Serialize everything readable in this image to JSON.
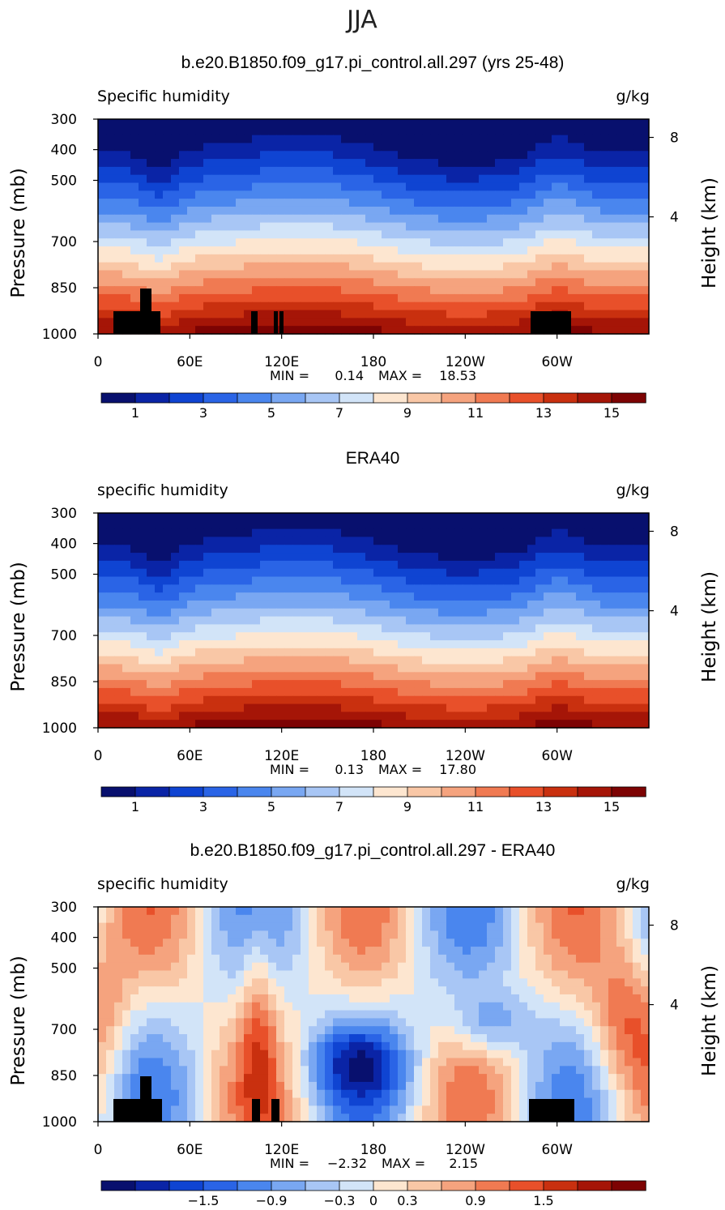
{
  "figure_title": "JJA",
  "palette": {
    "abs": [
      "#08106e",
      "#0a24a6",
      "#0f44d2",
      "#2a64e6",
      "#4a86ee",
      "#79a7f2",
      "#a8c6f5",
      "#d2e4f8",
      "#fde6d0",
      "#f9c7a6",
      "#f5a37e",
      "#f07a52",
      "#e8502a",
      "#c9300f",
      "#a51507",
      "#7d0303"
    ],
    "diff": [
      "#08106e",
      "#0a24a6",
      "#0f44d2",
      "#2a64e6",
      "#4a86ee",
      "#79a7f2",
      "#a8c6f5",
      "#d2e4f8",
      "#fde6d0",
      "#f9c7a6",
      "#f5a37e",
      "#f07a52",
      "#e8502a",
      "#c9300f",
      "#a51507",
      "#7d0303"
    ]
  },
  "axes": {
    "x_ticks": [
      "0",
      "60E",
      "120E",
      "180",
      "120W",
      "60W"
    ],
    "y_left_ticks": [
      "300",
      "400",
      "500",
      "700",
      "850",
      "1000"
    ],
    "y_right_ticks": [
      "8",
      "4"
    ],
    "y_left_label": "Pressure (mb)",
    "y_right_label": "Height (km)",
    "units": "g/kg",
    "min_label": "MIN =",
    "max_label": "MAX ="
  },
  "chart_data": [
    {
      "type": "heatmap",
      "title": "b.e20.B1850.f09_g17.pi_control.all.297 (yrs 25-48)",
      "variable": "Specific humidity",
      "min": "0.14",
      "max": "18.53",
      "colorbar_ticks": [
        "1",
        "3",
        "5",
        "7",
        "9",
        "11",
        "13",
        "15"
      ],
      "colorbar_levels": [
        0,
        1,
        2,
        3,
        4,
        5,
        6,
        7,
        8,
        9,
        10,
        11,
        12,
        13,
        14,
        15,
        16
      ]
    },
    {
      "type": "heatmap",
      "title": "ERA40",
      "variable": "specific humidity",
      "min": "0.13",
      "max": "17.80",
      "colorbar_ticks": [
        "1",
        "3",
        "5",
        "7",
        "9",
        "11",
        "13",
        "15"
      ],
      "colorbar_levels": [
        0,
        1,
        2,
        3,
        4,
        5,
        6,
        7,
        8,
        9,
        10,
        11,
        12,
        13,
        14,
        15,
        16
      ]
    },
    {
      "type": "heatmap",
      "title": "b.e20.B1850.f09_g17.pi_control.all.297 - ERA40",
      "variable": "specific humidity",
      "min": "−2.32",
      "max": "2.15",
      "colorbar_ticks": [
        "−1.5",
        "−0.9",
        "−0.3",
        "0",
        "0.3",
        "0.9",
        "1.5"
      ],
      "colorbar_levels": [
        -2.4,
        -2.1,
        -1.8,
        -1.5,
        -1.2,
        -0.9,
        -0.6,
        -0.3,
        0,
        0.3,
        0.6,
        0.9,
        1.2,
        1.5,
        1.8,
        2.1,
        2.4
      ]
    }
  ]
}
